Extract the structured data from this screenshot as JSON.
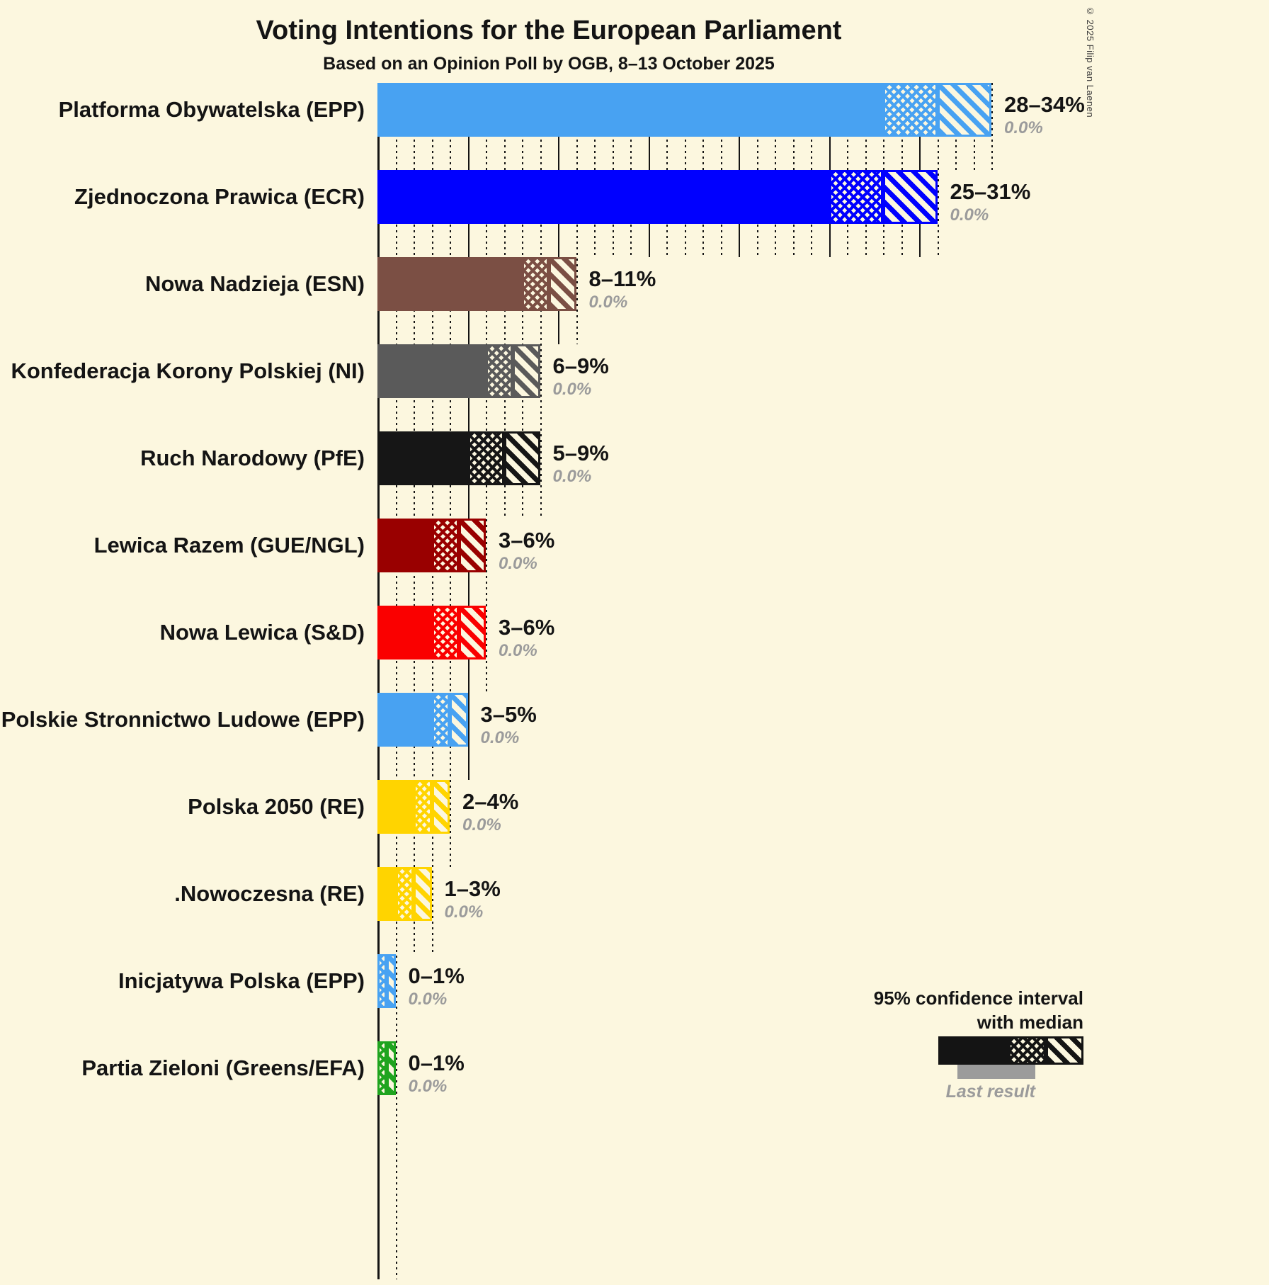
{
  "title": "Voting Intentions for the European Parliament",
  "subtitle": "Based on an Opinion Poll by OGB, 8–13 October 2025",
  "copyright": "© 2025 Filip van Laenen",
  "legend": {
    "ci_line1": "95% confidence interval",
    "ci_line2": "with median",
    "last_result_label": "Last result"
  },
  "chart_data": {
    "type": "bar",
    "orientation": "horizontal",
    "unit": "%",
    "background_color": "#fcf7df",
    "x_axis": {
      "min": 0,
      "max": 34,
      "minor_tick_step": 1,
      "major_tick_step": 5,
      "gridlines": true
    },
    "rows": [
      {
        "party": "Platforma Obywatelska (EPP)",
        "ci_low": 28,
        "median": 31,
        "ci_high": 34,
        "range_label": "28–34%",
        "last_result": 0.0,
        "last_result_label": "0.0%",
        "color": "#48a2f2"
      },
      {
        "party": "Zjednoczona Prawica (ECR)",
        "ci_low": 25,
        "median": 28,
        "ci_high": 31,
        "range_label": "25–31%",
        "last_result": 0.0,
        "last_result_label": "0.0%",
        "color": "#0000ff"
      },
      {
        "party": "Nowa Nadzieja (ESN)",
        "ci_low": 8,
        "median": 9.5,
        "ci_high": 11,
        "range_label": "8–11%",
        "last_result": 0.0,
        "last_result_label": "0.0%",
        "color": "#7b4f44"
      },
      {
        "party": "Konfederacja Korony Polskiej (NI)",
        "ci_low": 6,
        "median": 7.5,
        "ci_high": 9,
        "range_label": "6–9%",
        "last_result": 0.0,
        "last_result_label": "0.0%",
        "color": "#5a5a5a"
      },
      {
        "party": "Ruch Narodowy (PfE)",
        "ci_low": 5,
        "median": 7,
        "ci_high": 9,
        "range_label": "5–9%",
        "last_result": 0.0,
        "last_result_label": "0.0%",
        "color": "#161616"
      },
      {
        "party": "Lewica Razem (GUE/NGL)",
        "ci_low": 3,
        "median": 4.5,
        "ci_high": 6,
        "range_label": "3–6%",
        "last_result": 0.0,
        "last_result_label": "0.0%",
        "color": "#990000"
      },
      {
        "party": "Nowa Lewica (S&D)",
        "ci_low": 3,
        "median": 4.5,
        "ci_high": 6,
        "range_label": "3–6%",
        "last_result": 0.0,
        "last_result_label": "0.0%",
        "color": "#fa0000"
      },
      {
        "party": "Polskie Stronnictwo Ludowe (EPP)",
        "ci_low": 3,
        "median": 4,
        "ci_high": 5,
        "range_label": "3–5%",
        "last_result": 0.0,
        "last_result_label": "0.0%",
        "color": "#48a2f2"
      },
      {
        "party": "Polska 2050 (RE)",
        "ci_low": 2,
        "median": 3,
        "ci_high": 4,
        "range_label": "2–4%",
        "last_result": 0.0,
        "last_result_label": "0.0%",
        "color": "#ffd400"
      },
      {
        "party": ".Nowoczesna (RE)",
        "ci_low": 1,
        "median": 2,
        "ci_high": 3,
        "range_label": "1–3%",
        "last_result": 0.0,
        "last_result_label": "0.0%",
        "color": "#ffd400"
      },
      {
        "party": "Inicjatywa Polska (EPP)",
        "ci_low": 0,
        "median": 0.5,
        "ci_high": 1,
        "range_label": "0–1%",
        "last_result": 0.0,
        "last_result_label": "0.0%",
        "color": "#48a2f2"
      },
      {
        "party": "Partia Zieloni (Greens/EFA)",
        "ci_low": 0,
        "median": 0.5,
        "ci_high": 1,
        "range_label": "0–1%",
        "last_result": 0.0,
        "last_result_label": "0.0%",
        "color": "#1fa41f"
      }
    ]
  }
}
